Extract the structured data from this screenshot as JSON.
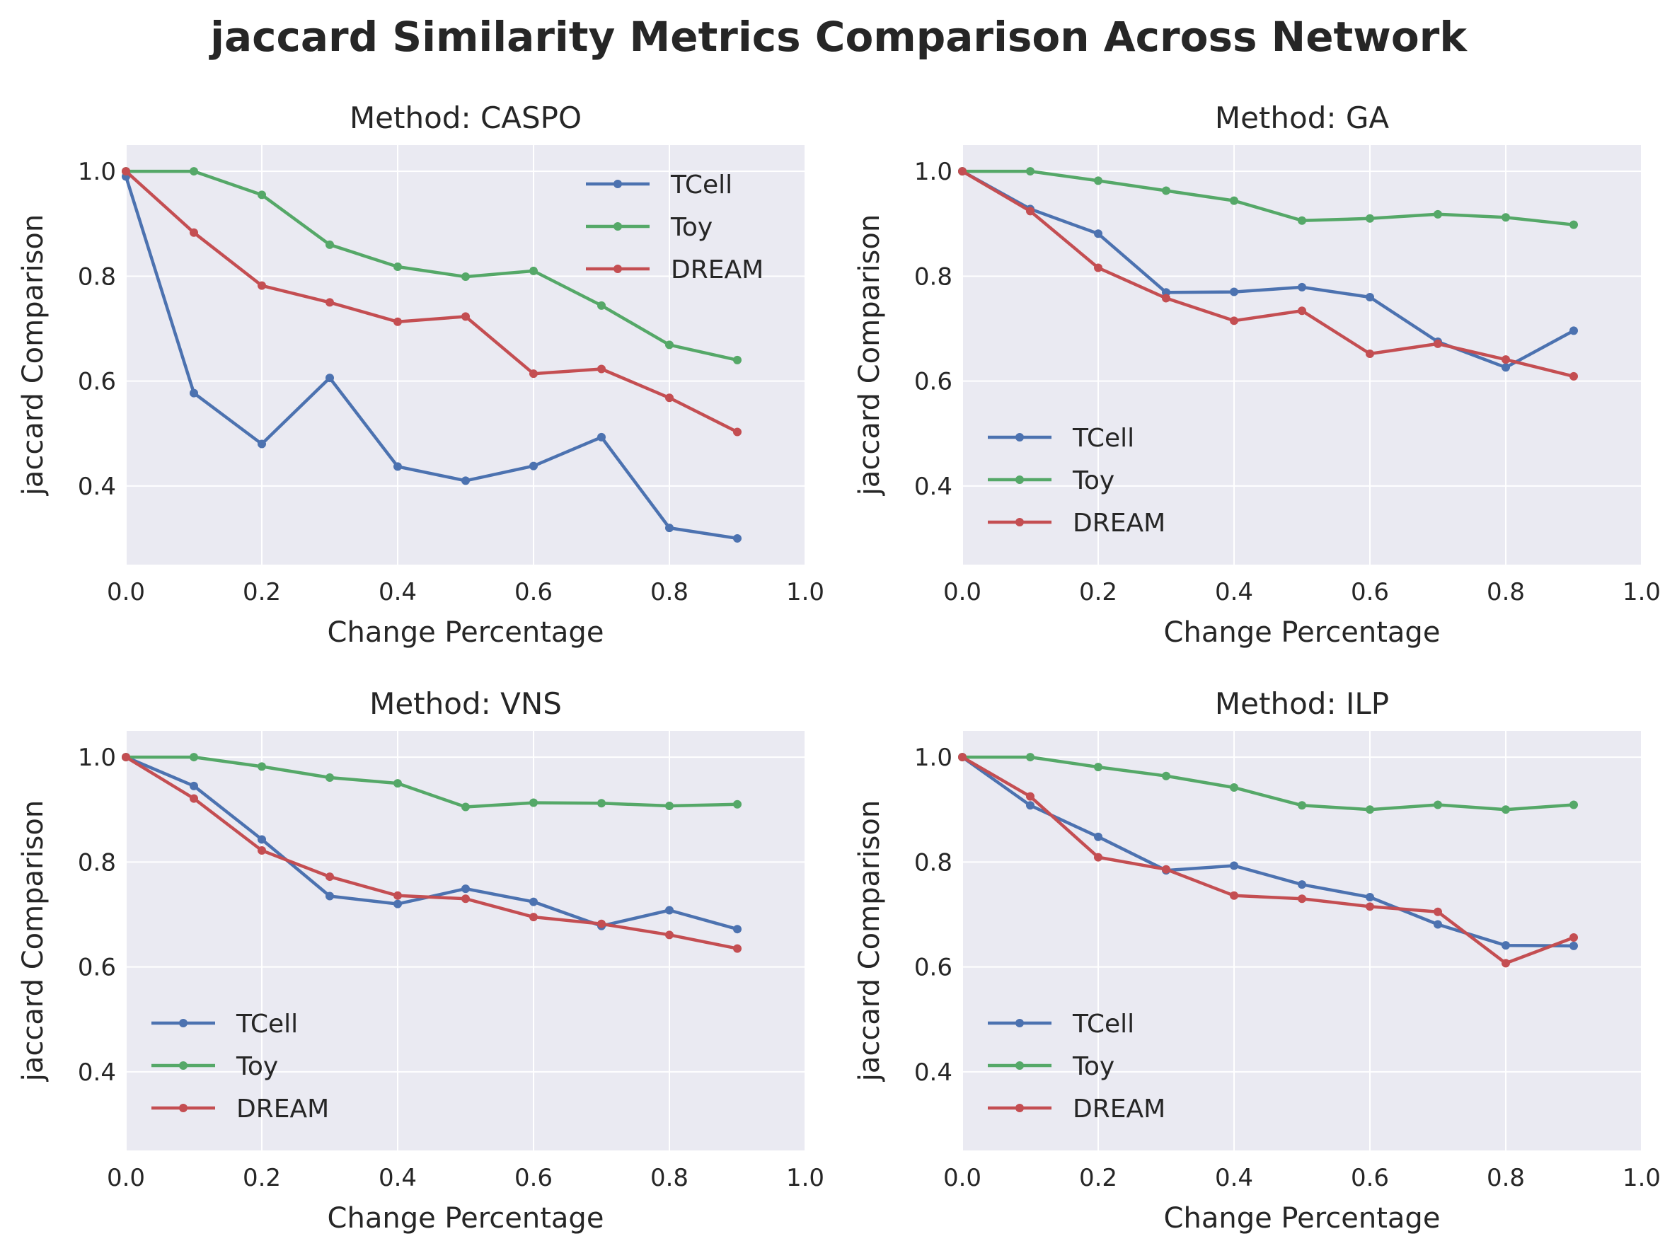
{
  "figure": {
    "title": "jaccard Similarity Metrics Comparison Across Network"
  },
  "colors": {
    "TCell": "#4c72b0",
    "Toy": "#55a868",
    "DREAM": "#c44e52",
    "panel_bg": "#eaeaf2",
    "grid": "#ffffff"
  },
  "chart_data": [
    {
      "type": "line",
      "title": "Method: CASPO",
      "xlabel": "Change Percentage",
      "ylabel": "jaccard Comparison",
      "xlim": [
        0.0,
        1.0
      ],
      "ylim": [
        0.25,
        1.05
      ],
      "xticks": [
        "0.0",
        "0.2",
        "0.4",
        "0.6",
        "0.8",
        "1.0"
      ],
      "yticks": [
        "0.4",
        "0.6",
        "0.8",
        "1.0"
      ],
      "legend": "upper right",
      "x": [
        0.0,
        0.1,
        0.2,
        0.3,
        0.4,
        0.5,
        0.6,
        0.7,
        0.8,
        0.9
      ],
      "series": [
        {
          "name": "TCell",
          "values": [
            0.99,
            0.577,
            0.48,
            0.606,
            0.437,
            0.41,
            0.438,
            0.493,
            0.32,
            0.3
          ]
        },
        {
          "name": "Toy",
          "values": [
            1.0,
            1.0,
            0.955,
            0.86,
            0.818,
            0.799,
            0.81,
            0.744,
            0.669,
            0.64
          ]
        },
        {
          "name": "DREAM",
          "values": [
            1.0,
            0.883,
            0.782,
            0.75,
            0.713,
            0.723,
            0.614,
            0.623,
            0.568,
            0.503
          ]
        }
      ]
    },
    {
      "type": "line",
      "title": "Method: GA",
      "xlabel": "Change Percentage",
      "ylabel": "jaccard Comparison",
      "xlim": [
        0.0,
        1.0
      ],
      "ylim": [
        0.25,
        1.05
      ],
      "xticks": [
        "0.0",
        "0.2",
        "0.4",
        "0.6",
        "0.8",
        "1.0"
      ],
      "yticks": [
        "0.4",
        "0.6",
        "0.8",
        "1.0"
      ],
      "legend": "lower left",
      "x": [
        0.0,
        0.1,
        0.2,
        0.3,
        0.4,
        0.5,
        0.6,
        0.7,
        0.8,
        0.9
      ],
      "series": [
        {
          "name": "TCell",
          "values": [
            1.0,
            0.928,
            0.881,
            0.769,
            0.77,
            0.779,
            0.76,
            0.675,
            0.626,
            0.696
          ]
        },
        {
          "name": "Toy",
          "values": [
            1.0,
            1.0,
            0.982,
            0.963,
            0.944,
            0.906,
            0.91,
            0.918,
            0.912,
            0.898
          ]
        },
        {
          "name": "DREAM",
          "values": [
            1.0,
            0.924,
            0.816,
            0.758,
            0.715,
            0.734,
            0.652,
            0.671,
            0.641,
            0.609
          ]
        }
      ]
    },
    {
      "type": "line",
      "title": "Method: VNS",
      "xlabel": "Change Percentage",
      "ylabel": "jaccard Comparison",
      "xlim": [
        0.0,
        1.0
      ],
      "ylim": [
        0.25,
        1.05
      ],
      "xticks": [
        "0.0",
        "0.2",
        "0.4",
        "0.6",
        "0.8",
        "1.0"
      ],
      "yticks": [
        "0.4",
        "0.6",
        "0.8",
        "1.0"
      ],
      "legend": "lower left",
      "x": [
        0.0,
        0.1,
        0.2,
        0.3,
        0.4,
        0.5,
        0.6,
        0.7,
        0.8,
        0.9
      ],
      "series": [
        {
          "name": "TCell",
          "values": [
            1.0,
            0.945,
            0.843,
            0.735,
            0.72,
            0.749,
            0.724,
            0.678,
            0.708,
            0.672
          ]
        },
        {
          "name": "Toy",
          "values": [
            1.0,
            1.0,
            0.982,
            0.961,
            0.95,
            0.905,
            0.913,
            0.912,
            0.907,
            0.91
          ]
        },
        {
          "name": "DREAM",
          "values": [
            1.0,
            0.921,
            0.822,
            0.772,
            0.736,
            0.73,
            0.695,
            0.682,
            0.661,
            0.635
          ]
        }
      ]
    },
    {
      "type": "line",
      "title": "Method: ILP",
      "xlabel": "Change Percentage",
      "ylabel": "jaccard Comparison",
      "xlim": [
        0.0,
        1.0
      ],
      "ylim": [
        0.25,
        1.05
      ],
      "xticks": [
        "0.0",
        "0.2",
        "0.4",
        "0.6",
        "0.8",
        "1.0"
      ],
      "yticks": [
        "0.4",
        "0.6",
        "0.8",
        "1.0"
      ],
      "legend": "lower left",
      "x": [
        0.0,
        0.1,
        0.2,
        0.3,
        0.4,
        0.5,
        0.6,
        0.7,
        0.8,
        0.9
      ],
      "series": [
        {
          "name": "TCell",
          "values": [
            1.0,
            0.908,
            0.848,
            0.784,
            0.793,
            0.757,
            0.733,
            0.681,
            0.641,
            0.64
          ]
        },
        {
          "name": "Toy",
          "values": [
            1.0,
            1.0,
            0.981,
            0.964,
            0.942,
            0.908,
            0.9,
            0.909,
            0.9,
            0.909
          ]
        },
        {
          "name": "DREAM",
          "values": [
            1.0,
            0.925,
            0.809,
            0.786,
            0.736,
            0.73,
            0.715,
            0.705,
            0.607,
            0.656
          ]
        }
      ]
    }
  ]
}
